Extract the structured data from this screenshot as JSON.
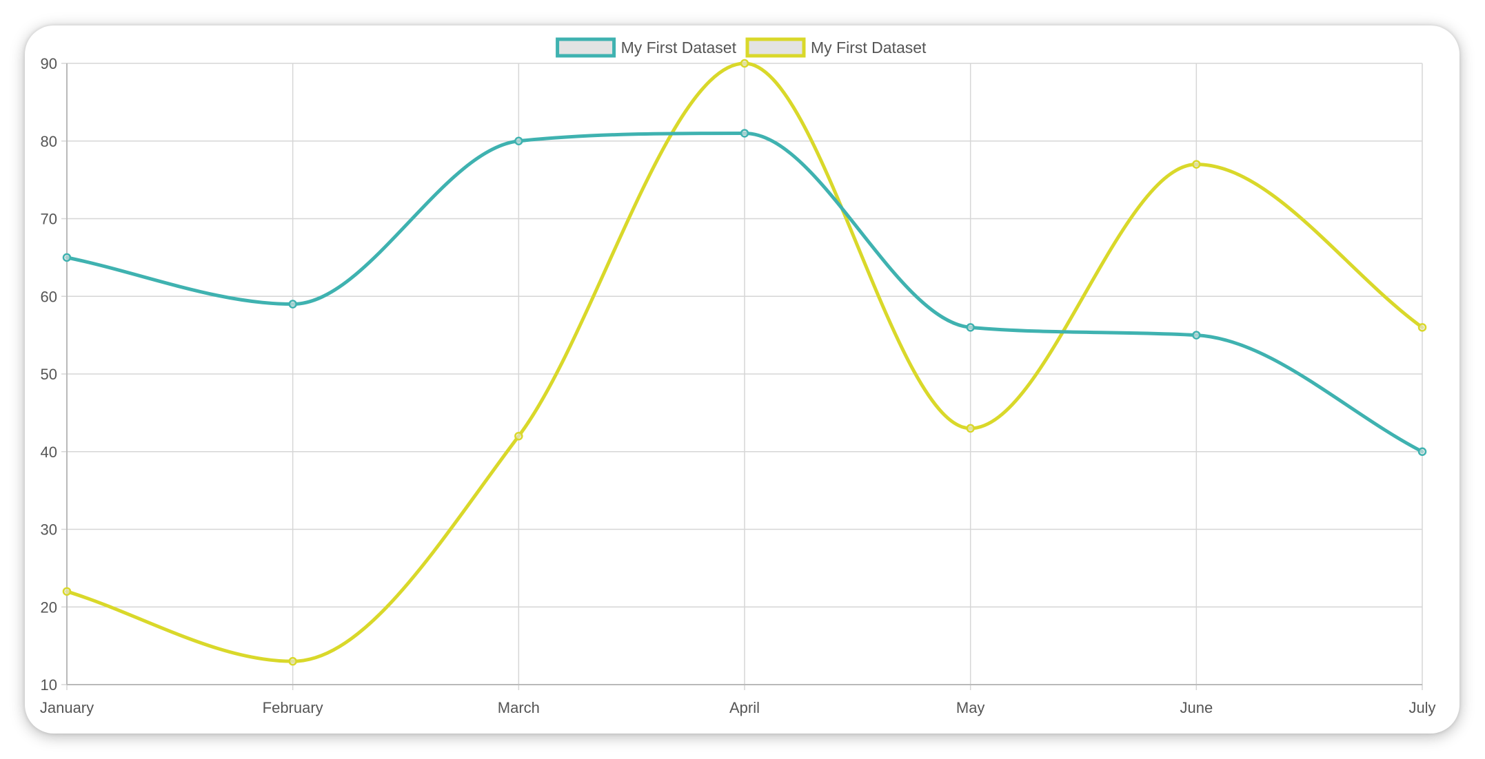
{
  "chart_data": {
    "type": "line",
    "categories": [
      "January",
      "February",
      "March",
      "April",
      "May",
      "June",
      "July"
    ],
    "ylim": [
      10,
      90
    ],
    "yticks": [
      10,
      20,
      30,
      40,
      50,
      60,
      70,
      80,
      90
    ],
    "grid": true,
    "legend_position": "top",
    "curve": "smooth",
    "series": [
      {
        "name": "My First Dataset",
        "color": "#3fb2b0",
        "values": [
          65,
          59,
          80,
          81,
          56,
          55,
          40
        ]
      },
      {
        "name": "My First Dataset",
        "color": "#d9d82a",
        "values": [
          22,
          13,
          42,
          90,
          43,
          77,
          56
        ]
      }
    ]
  }
}
